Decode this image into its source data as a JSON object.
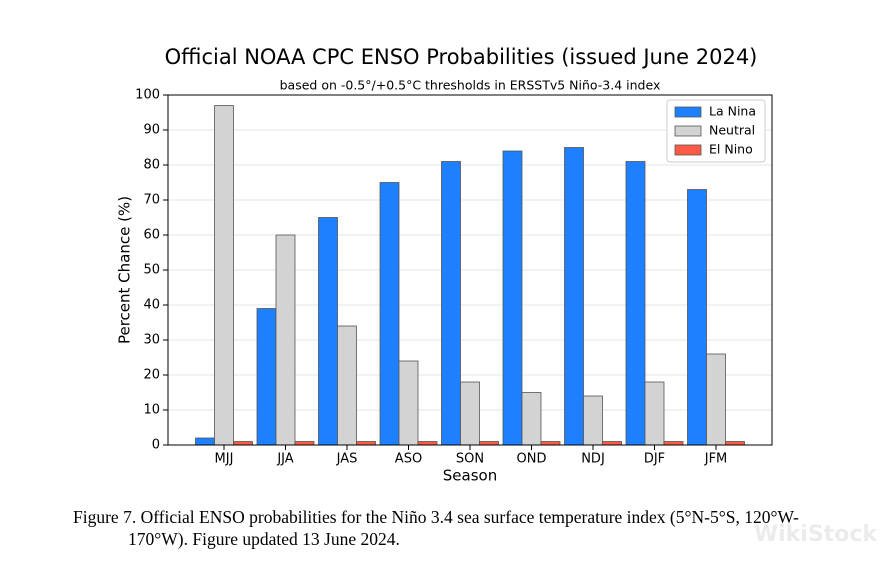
{
  "chart_data": {
    "type": "bar",
    "title": "Official NOAA CPC ENSO Probabilities (issued June 2024)",
    "subtitle": "based on -0.5°/+0.5°C thresholds in ERSSTv5 Niño-3.4 index",
    "x_label": "Season",
    "y_label": "Percent Chance (%)",
    "categories": [
      "MJJ",
      "JJA",
      "JAS",
      "ASO",
      "SON",
      "OND",
      "NDJ",
      "DJF",
      "JFM"
    ],
    "series": [
      {
        "name": "La Nina",
        "color": "#1f80ff",
        "values": [
          2,
          39,
          65,
          75,
          81,
          84,
          85,
          81,
          73
        ]
      },
      {
        "name": "Neutral",
        "color": "#d3d3d3",
        "values": [
          97,
          60,
          34,
          24,
          18,
          15,
          14,
          18,
          26
        ]
      },
      {
        "name": "El Nino",
        "color": "#ff5a45",
        "values": [
          1,
          1,
          1,
          1,
          1,
          1,
          1,
          1,
          1
        ]
      }
    ],
    "ylim": [
      0,
      100
    ],
    "yticks": [
      0,
      10,
      20,
      30,
      40,
      50,
      60,
      70,
      80,
      90,
      100
    ],
    "grid": true,
    "legend": "upper-right"
  },
  "caption": "Figure 7. Official ENSO probabilities for the Niño 3.4 sea surface temperature index (5°N-5°S, 120°W-170°W). Figure updated 13 June 2024.",
  "watermark": "WikiStock"
}
